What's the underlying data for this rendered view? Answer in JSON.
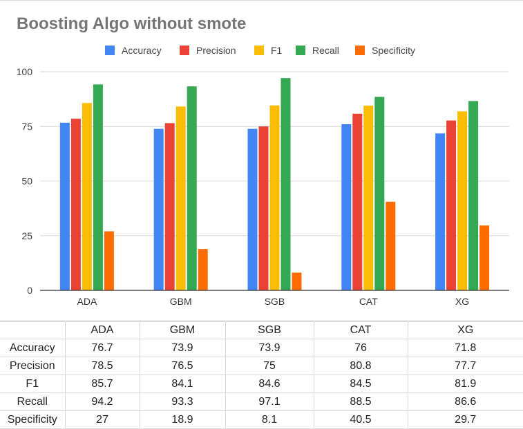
{
  "chart_data": {
    "type": "bar",
    "title": "Boosting Algo without smote",
    "categories": [
      "ADA",
      "GBM",
      "SGB",
      "CAT",
      "XG"
    ],
    "series": [
      {
        "name": "Accuracy",
        "color": "#4285f4",
        "values": [
          76.7,
          73.9,
          73.9,
          76,
          71.8
        ]
      },
      {
        "name": "Precision",
        "color": "#ea4335",
        "values": [
          78.5,
          76.5,
          75,
          80.8,
          77.7
        ]
      },
      {
        "name": "F1",
        "color": "#fbbc04",
        "values": [
          85.7,
          84.1,
          84.6,
          84.5,
          81.9
        ]
      },
      {
        "name": "Recall",
        "color": "#34a853",
        "values": [
          94.2,
          93.3,
          97.1,
          88.5,
          86.6
        ]
      },
      {
        "name": "Specificity",
        "color": "#ff6d01",
        "values": [
          27,
          18.9,
          8.1,
          40.5,
          29.7
        ]
      }
    ],
    "yticks": [
      "0",
      "25",
      "50",
      "75",
      "100"
    ],
    "ylim": [
      0,
      100
    ],
    "grid": true,
    "legend_position": "top"
  },
  "table": {
    "header": [
      "",
      "ADA",
      "GBM",
      "SGB",
      "CAT",
      "XG"
    ],
    "rows": [
      [
        "Accuracy",
        "76.7",
        "73.9",
        "73.9",
        "76",
        "71.8"
      ],
      [
        "Precision",
        "78.5",
        "76.5",
        "75",
        "80.8",
        "77.7"
      ],
      [
        "F1",
        "85.7",
        "84.1",
        "84.6",
        "84.5",
        "81.9"
      ],
      [
        "Recall",
        "94.2",
        "93.3",
        "97.1",
        "88.5",
        "86.6"
      ],
      [
        "Specificity",
        "27",
        "18.9",
        "8.1",
        "40.5",
        "29.7"
      ]
    ]
  }
}
